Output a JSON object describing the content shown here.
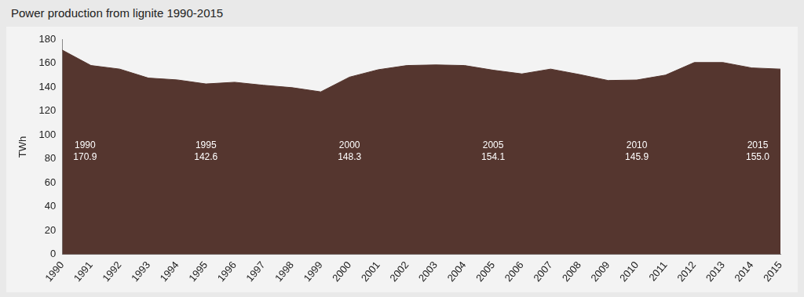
{
  "chart_data": {
    "type": "area",
    "title": "Power production from lignite 1990-2015",
    "y_label": "TWh",
    "categories": [
      "1990",
      "1991",
      "1992",
      "1993",
      "1994",
      "1995",
      "1996",
      "1997",
      "1998",
      "1999",
      "2000",
      "2001",
      "2002",
      "2003",
      "2004",
      "2005",
      "2006",
      "2007",
      "2008",
      "2009",
      "2010",
      "2011",
      "2012",
      "2013",
      "2014",
      "2015"
    ],
    "values": [
      170.9,
      158,
      155,
      147.5,
      146,
      142.6,
      144,
      141.5,
      139.5,
      136,
      148.3,
      154.5,
      158,
      158.5,
      158,
      154.1,
      151,
      155,
      150.5,
      145.5,
      145.9,
      150,
      160.5,
      160.5,
      156,
      155.0
    ],
    "color": "#55362f",
    "ylim": [
      0,
      180
    ],
    "yticks": [
      0,
      20,
      40,
      60,
      80,
      100,
      120,
      140,
      160,
      180
    ],
    "grid": false,
    "annotations": [
      {
        "x": "1990",
        "text": [
          "1990",
          "170.9"
        ]
      },
      {
        "x": "1995",
        "text": [
          "1995",
          "142.6"
        ]
      },
      {
        "x": "2000",
        "text": [
          "2000",
          "148.3"
        ]
      },
      {
        "x": "2005",
        "text": [
          "2005",
          "154.1"
        ]
      },
      {
        "x": "2010",
        "text": [
          "2010",
          "145.9"
        ]
      },
      {
        "x": "2015",
        "text": [
          "2015",
          "155.0"
        ]
      }
    ]
  }
}
